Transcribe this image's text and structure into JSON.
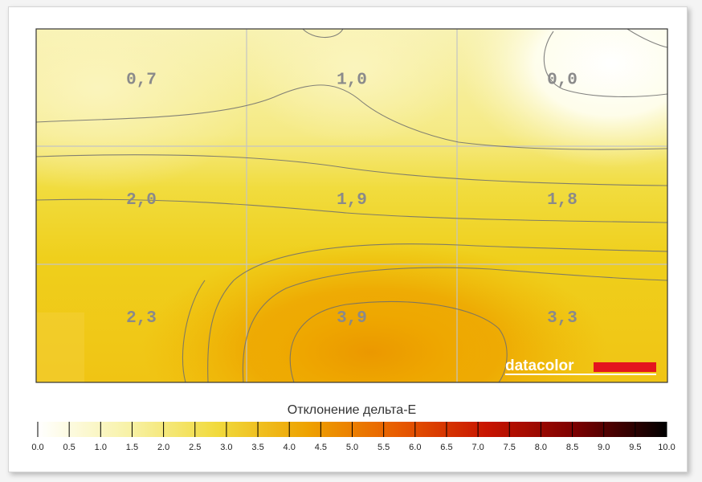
{
  "chart_data": {
    "type": "heatmap",
    "grid": [
      [
        0.7,
        1.0,
        0.0
      ],
      [
        2.0,
        1.9,
        1.8
      ],
      [
        2.3,
        3.9,
        3.3
      ]
    ],
    "cell_labels": [
      [
        "0,7",
        "1,0",
        "0,0"
      ],
      [
        "2,0",
        "1,9",
        "1,8"
      ],
      [
        "2,3",
        "3,9",
        "3,3"
      ]
    ],
    "scale_title": "Отклонение дельта-E",
    "scale_ticks": [
      "0.0",
      "0.5",
      "1.0",
      "1.5",
      "2.0",
      "2.5",
      "3.0",
      "3.5",
      "4.0",
      "4.5",
      "5.0",
      "5.5",
      "6.0",
      "6.5",
      "7.0",
      "7.5",
      "8.0",
      "8.5",
      "9.0",
      "9.5",
      "10.0"
    ],
    "scale_range": [
      0,
      10
    ],
    "colorscale": [
      "#ffffff",
      "#f8f2a8",
      "#f1da3c",
      "#eea200",
      "#e85c00",
      "#c81400",
      "#7a0000",
      "#000000"
    ],
    "brand": "datacolor",
    "brand_color": "#e4141e"
  }
}
